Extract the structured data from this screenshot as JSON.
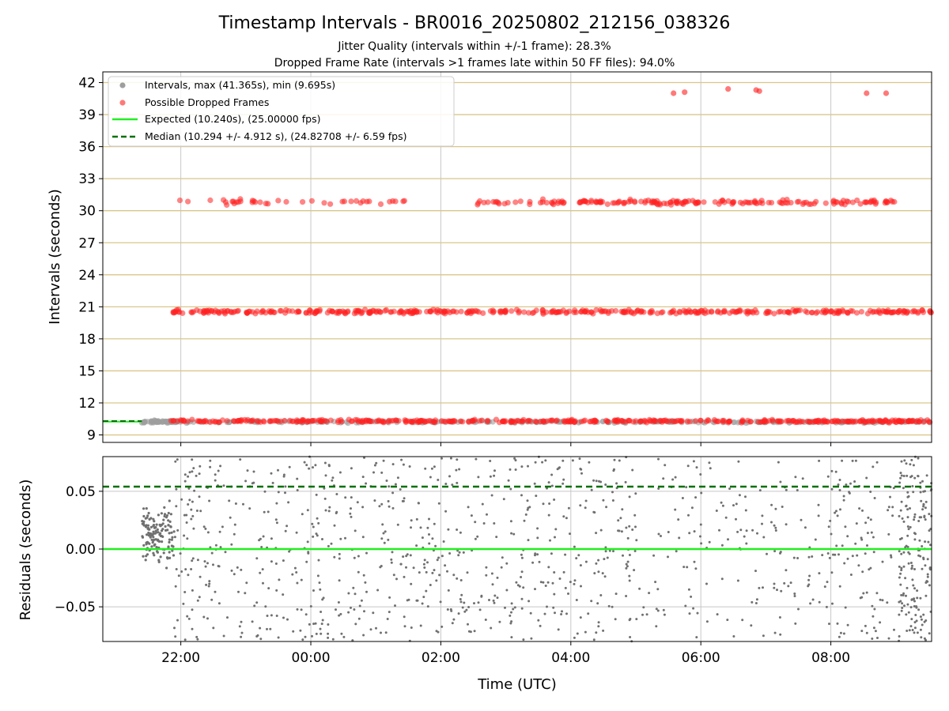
{
  "figure": {
    "title": "Timestamp Intervals - BR0016_20250802_212156_038326",
    "subtitle_1": "Jitter Quality (intervals within +/-1 frame): 28.3%",
    "subtitle_2": "Dropped Frame Rate (intervals >1 frames late within 50 FF files): 94.0%",
    "xlabel": "Time (UTC)"
  },
  "colors": {
    "intervals": "#9e9e9e",
    "dropped": "#ff2020",
    "expected": "#22ee22",
    "median": "#007000",
    "hgrid": "#d9c68a",
    "grid": "#c8c8c8",
    "residuals": "#707070"
  },
  "chart_data": [
    {
      "type": "scatter",
      "ylabel": "Intervals (seconds)",
      "ylim": [
        8.3,
        43.0
      ],
      "yticks": [
        9,
        12,
        15,
        18,
        21,
        24,
        27,
        30,
        33,
        36,
        39,
        42
      ],
      "ytick_labels": [
        "9",
        "12",
        "15",
        "18",
        "21",
        "24",
        "27",
        "30",
        "33",
        "36",
        "39",
        "42"
      ],
      "x_range_hours": [
        -3.2,
        9.55
      ],
      "x_data_start_hour": -2.6,
      "legend_position": "upper-left",
      "legend": [
        "Intervals, max (41.365s), min (9.695s)",
        "Possible Dropped Frames",
        "Expected (10.240s), (25.00000 fps)",
        "Median (10.294 +/- 4.912 s), (24.82708 +/- 6.59 fps)"
      ],
      "series": [
        {
          "name": "Intervals, max (41.365s), min (9.695s)",
          "level_s": 10.24,
          "spread_s": 0.12
        },
        {
          "name": "Possible Dropped Frames",
          "levels_s": [
            10.29,
            20.54,
            30.8
          ],
          "outliers_s": [
            41.1,
            41.2,
            41.4,
            41.3,
            41.0,
            41.0
          ]
        },
        {
          "name": "Expected (10.240s), (25.00000 fps)",
          "value": 10.24
        },
        {
          "name": "Median (10.294 +/- 4.912 s), (24.82708 +/- 6.59 fps)",
          "value": 10.294
        }
      ]
    },
    {
      "type": "scatter",
      "ylabel": "Residuals (seconds)",
      "ylim": [
        -0.08,
        0.08
      ],
      "yticks": [
        -0.05,
        0.0,
        0.05
      ],
      "ytick_labels": [
        "−0.05",
        "0.00",
        "0.05"
      ],
      "xticks_hours": [
        -2,
        0,
        2,
        4,
        6,
        8
      ],
      "xtick_labels": [
        "22:00",
        "00:00",
        "02:00",
        "04:00",
        "06:00",
        "08:00"
      ],
      "expected_residual": 0.0,
      "median_residual": 0.054
    }
  ]
}
